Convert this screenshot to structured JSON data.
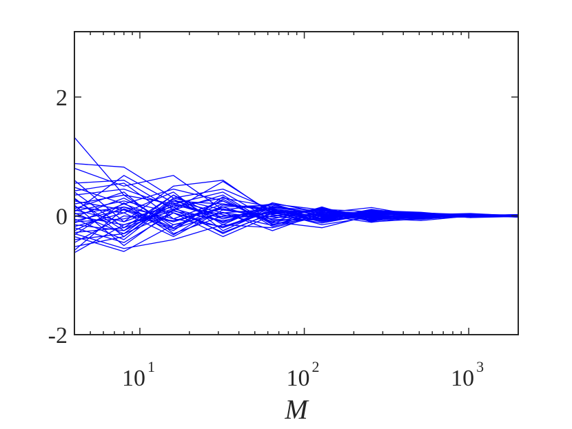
{
  "chart_data": {
    "type": "line",
    "title": "",
    "xlabel": "M",
    "ylabel": "",
    "x_scale": "log",
    "xlim": [
      4,
      2000
    ],
    "ylim": [
      -2,
      3.1
    ],
    "grid": false,
    "legend": "none",
    "line_color": "#0000ff",
    "x_ticks": [
      {
        "base": "10",
        "exp": "1",
        "value": 10
      },
      {
        "base": "10",
        "exp": "2",
        "value": 100
      },
      {
        "base": "10",
        "exp": "3",
        "value": 1000
      }
    ],
    "y_ticks": [
      {
        "label": "-2",
        "value": -2
      },
      {
        "label": "0",
        "value": 0
      },
      {
        "label": "2",
        "value": 2
      }
    ],
    "x": [
      4,
      8,
      16,
      32,
      64,
      128,
      256,
      512,
      1024,
      2000
    ],
    "series": [
      {
        "values": [
          1.32,
          0.35,
          0.2,
          -0.05,
          0.12,
          0.02,
          -0.03,
          0.01,
          0.02,
          -0.01
        ]
      },
      {
        "values": [
          0.88,
          0.82,
          0.3,
          0.45,
          0.1,
          -0.05,
          0.06,
          0.02,
          -0.01,
          0.0
        ]
      },
      {
        "values": [
          0.8,
          0.5,
          0.68,
          0.1,
          0.2,
          0.1,
          0.02,
          0.03,
          0.01,
          0.02
        ]
      },
      {
        "values": [
          0.55,
          0.6,
          0.1,
          0.58,
          0.05,
          -0.08,
          0.1,
          0.04,
          0.0,
          -0.02
        ]
      },
      {
        "values": [
          0.48,
          0.2,
          0.45,
          0.25,
          -0.1,
          0.15,
          -0.1,
          -0.05,
          0.03,
          0.01
        ]
      },
      {
        "values": [
          0.4,
          -0.2,
          0.35,
          -0.15,
          0.22,
          0.05,
          0.14,
          0.0,
          -0.02,
          0.0
        ]
      },
      {
        "values": [
          0.35,
          0.45,
          0.15,
          0.3,
          0.15,
          0.08,
          0.04,
          0.05,
          0.02,
          0.01
        ]
      },
      {
        "values": [
          0.3,
          -0.35,
          0.25,
          0.05,
          -0.05,
          0.12,
          -0.04,
          -0.08,
          0.0,
          -0.01
        ]
      },
      {
        "values": [
          0.25,
          0.1,
          -0.1,
          0.2,
          0.08,
          -0.1,
          0.02,
          0.02,
          0.04,
          0.0
        ]
      },
      {
        "values": [
          0.2,
          0.35,
          -0.2,
          0.15,
          0.18,
          0.0,
          0.08,
          -0.03,
          -0.02,
          0.01
        ]
      },
      {
        "values": [
          0.18,
          -0.5,
          0.1,
          0.35,
          -0.15,
          0.06,
          -0.06,
          0.04,
          0.01,
          -0.02
        ]
      },
      {
        "values": [
          0.15,
          0.05,
          0.4,
          -0.25,
          0.12,
          -0.04,
          0.05,
          0.01,
          0.0,
          0.0
        ]
      },
      {
        "values": [
          0.12,
          0.4,
          -0.3,
          0.0,
          0.05,
          0.1,
          -0.02,
          -0.02,
          0.02,
          0.01
        ]
      },
      {
        "values": [
          0.1,
          -0.1,
          0.2,
          0.4,
          -0.08,
          -0.06,
          0.09,
          0.06,
          -0.01,
          0.0
        ]
      },
      {
        "values": [
          0.08,
          0.25,
          0.05,
          -0.2,
          0.14,
          0.04,
          -0.08,
          0.0,
          0.03,
          -0.01
        ]
      },
      {
        "values": [
          0.05,
          -0.3,
          0.3,
          0.1,
          0.02,
          -0.12,
          0.03,
          0.03,
          0.0,
          0.02
        ]
      },
      {
        "values": [
          0.03,
          0.15,
          -0.05,
          0.25,
          -0.12,
          0.08,
          0.0,
          -0.04,
          0.01,
          0.0
        ]
      },
      {
        "values": [
          0.0,
          -0.15,
          0.12,
          -0.1,
          0.2,
          -0.02,
          0.06,
          0.02,
          -0.02,
          -0.01
        ]
      },
      {
        "values": [
          -0.02,
          0.3,
          -0.15,
          0.05,
          -0.05,
          0.14,
          -0.05,
          0.01,
          0.02,
          0.01
        ]
      },
      {
        "values": [
          -0.05,
          -0.4,
          0.25,
          0.2,
          0.1,
          -0.08,
          0.02,
          -0.03,
          0.0,
          0.0
        ]
      },
      {
        "values": [
          -0.08,
          0.1,
          -0.25,
          0.32,
          -0.18,
          0.02,
          0.07,
          0.04,
          -0.03,
          0.02
        ]
      },
      {
        "values": [
          -0.1,
          -0.05,
          0.15,
          -0.3,
          0.06,
          0.1,
          -0.07,
          -0.01,
          0.02,
          0.0
        ]
      },
      {
        "values": [
          -0.12,
          0.2,
          -0.1,
          0.15,
          -0.1,
          -0.2,
          0.01,
          0.05,
          0.0,
          -0.01
        ]
      },
      {
        "values": [
          -0.15,
          -0.25,
          0.35,
          -0.05,
          0.15,
          0.04,
          -0.03,
          -0.06,
          0.01,
          0.01
        ]
      },
      {
        "values": [
          -0.18,
          0.05,
          -0.35,
          0.1,
          -0.02,
          -0.05,
          0.11,
          0.0,
          -0.01,
          0.0
        ]
      },
      {
        "values": [
          -0.2,
          -0.45,
          0.05,
          -0.2,
          0.08,
          0.07,
          -0.09,
          0.02,
          0.03,
          -0.02
        ]
      },
      {
        "values": [
          -0.25,
          0.15,
          -0.2,
          0.28,
          -0.14,
          -0.03,
          0.04,
          -0.02,
          0.0,
          0.0
        ]
      },
      {
        "values": [
          -0.28,
          -0.2,
          0.1,
          -0.28,
          0.04,
          0.09,
          -0.04,
          0.03,
          -0.02,
          0.01
        ]
      },
      {
        "values": [
          -0.3,
          -0.55,
          -0.4,
          -0.15,
          -0.2,
          0.0,
          0.0,
          -0.05,
          0.01,
          0.0
        ]
      },
      {
        "values": [
          -0.35,
          -0.6,
          -0.15,
          0.05,
          0.11,
          -0.1,
          0.05,
          0.01,
          0.0,
          -0.01
        ]
      },
      {
        "values": [
          -0.4,
          -0.3,
          0.05,
          -0.35,
          0.01,
          0.03,
          -0.01,
          -0.02,
          0.02,
          0.0
        ]
      },
      {
        "values": [
          -0.45,
          0.0,
          -0.08,
          0.12,
          -0.06,
          -0.07,
          0.08,
          0.02,
          -0.01,
          0.01
        ]
      },
      {
        "values": [
          -0.52,
          -0.35,
          0.28,
          -0.12,
          0.16,
          0.01,
          -0.11,
          0.0,
          0.01,
          0.0
        ]
      },
      {
        "values": [
          -0.58,
          0.12,
          -0.22,
          0.06,
          -0.25,
          0.05,
          0.03,
          0.03,
          -0.03,
          -0.01
        ]
      },
      {
        "values": [
          -0.62,
          -0.15,
          0.08,
          -0.08,
          0.07,
          -0.15,
          -0.02,
          -0.03,
          0.0,
          0.02
        ]
      },
      {
        "values": [
          0.6,
          -0.1,
          0.5,
          0.6,
          0.03,
          0.11,
          0.07,
          -0.01,
          0.02,
          0.0
        ]
      },
      {
        "values": [
          0.42,
          0.55,
          -0.05,
          -0.18,
          0.09,
          -0.01,
          -0.06,
          0.04,
          -0.01,
          0.01
        ]
      },
      {
        "values": [
          0.28,
          -0.25,
          0.18,
          0.02,
          -0.16,
          0.06,
          0.01,
          -0.04,
          0.02,
          -0.02
        ]
      },
      {
        "values": [
          -0.32,
          0.22,
          -0.32,
          0.18,
          0.13,
          -0.09,
          0.09,
          0.02,
          0.0,
          0.0
        ]
      },
      {
        "values": [
          0.07,
          0.68,
          0.22,
          -0.02,
          -0.01,
          0.13,
          -0.07,
          0.0,
          0.01,
          0.01
        ]
      }
    ]
  }
}
